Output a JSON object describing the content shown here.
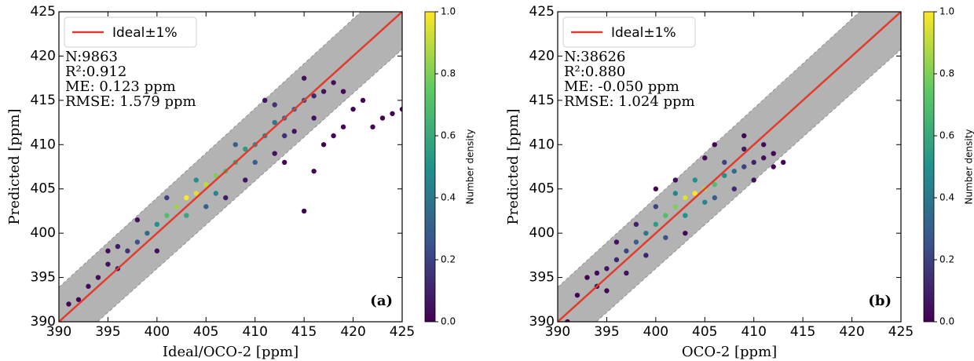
{
  "chart_data": [
    {
      "type": "scatter",
      "xlabel": "Ideal/OCO-2 [ppm]",
      "ylabel": "Predicted [ppm]",
      "panel_label": "(a)",
      "legend_label": "Ideal±1%",
      "ideal_color": "#e23b2e",
      "band": 0.01,
      "band_color": "#b3b3b3",
      "stats": [
        "N:9863",
        "R²:0.912",
        "ME: 0.123 ppm",
        "RMSE: 1.579 ppm"
      ],
      "xlim": [
        390,
        425
      ],
      "ylim": [
        390,
        425
      ],
      "xticks": [
        390,
        395,
        400,
        405,
        410,
        415,
        420,
        425
      ],
      "yticks": [
        390,
        395,
        400,
        405,
        410,
        415,
        420,
        425
      ],
      "colorbar": {
        "label": "Number density",
        "lim": [
          0,
          1
        ],
        "ticks": [
          {
            "value": 0,
            "label": "0.0"
          },
          0.2,
          0.4,
          0.6,
          0.8,
          {
            "value": 1,
            "label": "1.0"
          }
        ]
      },
      "points": {
        "x": [
          403,
          404,
          405,
          402,
          406,
          401,
          407,
          408,
          409,
          410,
          411,
          412,
          413,
          414,
          400,
          399,
          398,
          397,
          415,
          416,
          403,
          404,
          406,
          408,
          410,
          401,
          405,
          412,
          413,
          396,
          395,
          394,
          393,
          392,
          391,
          417,
          418,
          419,
          398,
          400,
          407,
          409,
          412,
          411,
          414,
          416,
          415,
          419,
          420,
          421,
          422,
          423,
          425,
          424,
          418,
          416,
          415,
          417,
          413,
          396,
          395
        ],
        "y": [
          404,
          404.5,
          405.5,
          403,
          406.5,
          402,
          407,
          408,
          409.5,
          410,
          411,
          412.5,
          413,
          414,
          401,
          400,
          399,
          398,
          415,
          415.5,
          402,
          406,
          404.5,
          410,
          408,
          404,
          403,
          414.5,
          411,
          398.5,
          396.5,
          395,
          394,
          392.5,
          392,
          416,
          417,
          416,
          401.5,
          398,
          404,
          406,
          409,
          415,
          411.5,
          413,
          417.5,
          412,
          414,
          415,
          412,
          413,
          414,
          413.5,
          411,
          407,
          402.5,
          410,
          408,
          396,
          398
        ],
        "density": [
          1.0,
          0.95,
          0.9,
          0.85,
          0.8,
          0.7,
          0.7,
          0.6,
          0.55,
          0.5,
          0.45,
          0.4,
          0.35,
          0.3,
          0.5,
          0.35,
          0.25,
          0.15,
          0.2,
          0.12,
          0.6,
          0.5,
          0.45,
          0.3,
          0.3,
          0.2,
          0.3,
          0.15,
          0.15,
          0.08,
          0.05,
          0.04,
          0.03,
          0.02,
          0.01,
          0.06,
          0.04,
          0.02,
          0.05,
          0.04,
          0.08,
          0.06,
          0.05,
          0.05,
          0.05,
          0.04,
          0.04,
          0.01,
          0.01,
          0.01,
          0.01,
          0.01,
          0.01,
          0.01,
          0.01,
          0.01,
          0.01,
          0.01,
          0.01,
          0.06,
          0.03
        ]
      }
    },
    {
      "type": "scatter",
      "xlabel": "OCO-2 [ppm]",
      "ylabel": "Predicted [ppm]",
      "panel_label": "(b)",
      "legend_label": "Ideal±1%",
      "ideal_color": "#e23b2e",
      "band": 0.01,
      "band_color": "#b3b3b3",
      "stats": [
        "N:38626",
        "R²:0.880",
        "ME: -0.050 ppm",
        "RMSE: 1.024 ppm"
      ],
      "xlim": [
        390,
        425
      ],
      "ylim": [
        390,
        425
      ],
      "xticks": [
        390,
        395,
        400,
        405,
        410,
        415,
        420,
        425
      ],
      "yticks": [
        390,
        395,
        400,
        405,
        410,
        415,
        420,
        425
      ],
      "colorbar": {
        "label": "Number density",
        "lim": [
          0,
          1
        ],
        "ticks": [
          {
            "value": 0,
            "label": "0.0"
          },
          0.2,
          0.4,
          0.6,
          0.8,
          {
            "value": 1,
            "label": "1.0"
          }
        ]
      },
      "points": {
        "x": [
          404,
          403,
          405,
          402,
          401,
          406,
          400,
          407,
          399,
          408,
          398,
          409,
          397,
          396,
          410,
          395,
          394,
          411,
          412,
          403,
          402,
          405,
          404,
          400,
          401,
          406,
          407,
          398,
          399,
          408,
          409,
          396,
          397,
          410,
          411,
          405,
          402,
          394,
          393,
          391,
          392,
          413,
          409,
          406,
          400,
          395,
          412,
          403
        ],
        "y": [
          404.5,
          404,
          405,
          403,
          402,
          405.5,
          401,
          406.5,
          400,
          407,
          399,
          407.5,
          398,
          397,
          408,
          396,
          395.5,
          408.5,
          409,
          402,
          404.5,
          403.5,
          406,
          403,
          399.5,
          404,
          408,
          401,
          397.5,
          405,
          409.5,
          399,
          395.5,
          406,
          410,
          408.5,
          406,
          394,
          395,
          390,
          393,
          408,
          411,
          410,
          405,
          393.5,
          407.5,
          400
        ],
        "density": [
          1.0,
          0.95,
          0.9,
          0.8,
          0.7,
          0.7,
          0.55,
          0.5,
          0.4,
          0.35,
          0.3,
          0.2,
          0.2,
          0.12,
          0.1,
          0.06,
          0.03,
          0.04,
          0.02,
          0.5,
          0.45,
          0.45,
          0.5,
          0.2,
          0.25,
          0.3,
          0.2,
          0.1,
          0.1,
          0.12,
          0.08,
          0.04,
          0.05,
          0.04,
          0.03,
          0.03,
          0.05,
          0.02,
          0.01,
          0.01,
          0.01,
          0.01,
          0.02,
          0.01,
          0.01,
          0.01,
          0.01,
          0.02
        ]
      }
    }
  ]
}
